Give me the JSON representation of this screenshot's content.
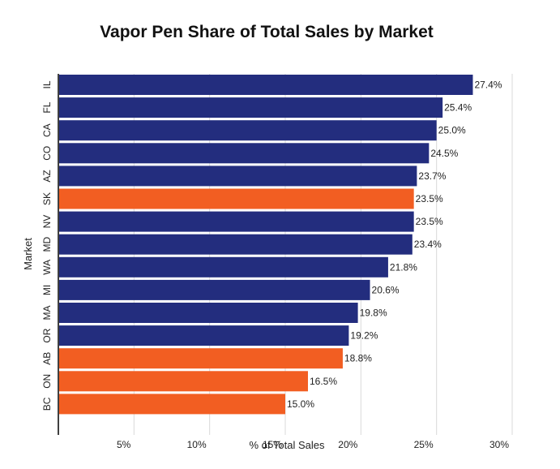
{
  "chart_data": {
    "type": "bar",
    "orientation": "horizontal",
    "title": "Vapor Pen Share of Total Sales by Market",
    "xlabel": "% of Total Sales",
    "ylabel": "Market",
    "xlim": [
      0,
      30
    ],
    "x_ticks": [
      5,
      10,
      15,
      20,
      25,
      30
    ],
    "x_tick_labels": [
      "5%",
      "10%",
      "15%",
      "20%",
      "25%",
      "30%"
    ],
    "grid": true,
    "legend": "none",
    "categories": [
      "IL",
      "FL",
      "CA",
      "CO",
      "AZ",
      "SK",
      "NV",
      "MD",
      "WA",
      "MI",
      "MA",
      "OR",
      "AB",
      "ON",
      "BC"
    ],
    "values": [
      27.4,
      25.4,
      25.0,
      24.5,
      23.7,
      23.5,
      23.5,
      23.4,
      21.8,
      20.6,
      19.8,
      19.2,
      18.8,
      16.5,
      15.0
    ],
    "value_labels": [
      "27.4%",
      "25.4%",
      "25.0%",
      "24.5%",
      "23.7%",
      "23.5%",
      "23.5%",
      "23.4%",
      "21.8%",
      "20.6%",
      "19.8%",
      "19.2%",
      "18.8%",
      "16.5%",
      "15.0%"
    ],
    "colors": {
      "us_market": "#232d7e",
      "canada_market": "#f25e22",
      "grid": "#d9d9d9",
      "axis": "#000000"
    },
    "bar_colors": [
      "us_market",
      "us_market",
      "us_market",
      "us_market",
      "us_market",
      "canada_market",
      "us_market",
      "us_market",
      "us_market",
      "us_market",
      "us_market",
      "us_market",
      "canada_market",
      "canada_market",
      "canada_market"
    ]
  }
}
